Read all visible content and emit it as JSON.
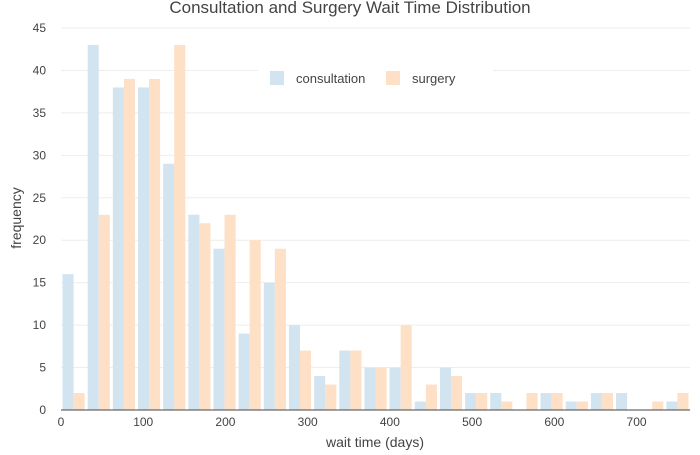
{
  "chart_data": {
    "type": "bar",
    "title": "Consultation and Surgery Wait Time Distribution",
    "xlabel": "wait time (days)",
    "ylabel": "frequency",
    "bin_width": 30.6,
    "x": [
      15.3,
      45.9,
      76.5,
      107.1,
      137.7,
      168.3,
      198.9,
      229.5,
      260.1,
      290.7,
      321.3,
      351.9,
      382.5,
      413.1,
      443.7,
      474.3,
      504.9,
      535.5,
      566.1,
      596.7,
      627.3,
      657.9,
      688.5,
      719.1,
      749.7
    ],
    "xlim": [
      0,
      765
    ],
    "ylim": [
      0,
      45
    ],
    "x_ticks": [
      0,
      100,
      200,
      300,
      400,
      500,
      600,
      700
    ],
    "y_ticks": [
      0,
      5,
      10,
      15,
      20,
      25,
      30,
      35,
      40,
      45
    ],
    "grid": true,
    "legend_position": "top-center",
    "series": [
      {
        "name": "consultation",
        "color": "#d3e4f1",
        "values": [
          16,
          43,
          38,
          38,
          29,
          23,
          19,
          9,
          15,
          10,
          4,
          7,
          5,
          5,
          1,
          5,
          2,
          2,
          0,
          2,
          1,
          2,
          2,
          0,
          1
        ]
      },
      {
        "name": "surgery",
        "color": "#fde0c6",
        "values": [
          2,
          23,
          39,
          39,
          43,
          22,
          23,
          20,
          19,
          7,
          3,
          7,
          5,
          10,
          3,
          4,
          2,
          1,
          2,
          2,
          1,
          2,
          0,
          1,
          2
        ]
      }
    ]
  }
}
